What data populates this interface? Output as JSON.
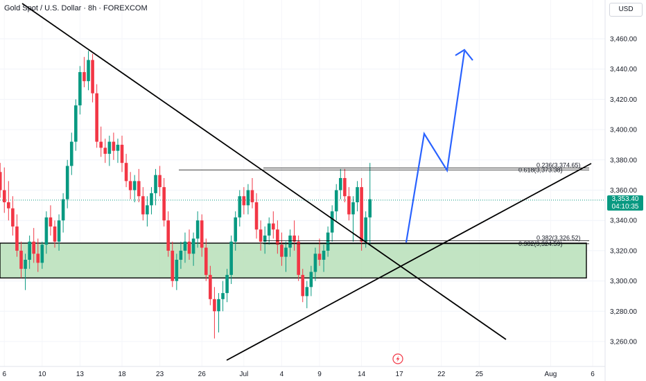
{
  "header": {
    "title": "Gold Spot / U.S. Dollar · 8h · FOREXCOM",
    "currency": "USD"
  },
  "price_tag": {
    "price": "3,353.40",
    "countdown": "04:10:35"
  },
  "colors": {
    "up": "#089981",
    "down": "#f23645",
    "projection": "#2962ff",
    "zone_fill": "#b7dfb9"
  },
  "icons": [
    "lightning-icon"
  ],
  "chart_data": {
    "type": "candlestick",
    "title": "Gold Spot / U.S. Dollar · 8h · FOREXCOM",
    "ylim": [
      3248,
      3475
    ],
    "y_ticks": [
      {
        "value": 3260,
        "label": "3,260.00"
      },
      {
        "value": 3280,
        "label": "3,280.00"
      },
      {
        "value": 3300,
        "label": "3,300.00"
      },
      {
        "value": 3320,
        "label": "3,320.00"
      },
      {
        "value": 3340,
        "label": "3,340.00"
      },
      {
        "value": 3360,
        "label": "3,360.00"
      },
      {
        "value": 3380,
        "label": "3,380.00"
      },
      {
        "value": 3400,
        "label": "3,400.00"
      },
      {
        "value": 3420,
        "label": "3,420.00"
      },
      {
        "value": 3440,
        "label": "3,440.00"
      },
      {
        "value": 3460,
        "label": "3,460.00"
      }
    ],
    "x_ticks": [
      {
        "i": 1,
        "label": "6"
      },
      {
        "i": 10,
        "label": "10"
      },
      {
        "i": 19,
        "label": "13"
      },
      {
        "i": 29,
        "label": "18"
      },
      {
        "i": 38,
        "label": "23"
      },
      {
        "i": 48,
        "label": "26"
      },
      {
        "i": 58,
        "label": "Jul"
      },
      {
        "i": 67,
        "label": "4"
      },
      {
        "i": 76,
        "label": "9"
      },
      {
        "i": 86,
        "label": "14"
      },
      {
        "i": 95,
        "label": "17"
      },
      {
        "i": 105,
        "label": "22"
      },
      {
        "i": 114,
        "label": "25"
      },
      {
        "i": 131,
        "label": "Aug"
      },
      {
        "i": 141,
        "label": "6"
      }
    ],
    "candles": [
      [
        3372,
        3378,
        3355,
        3360
      ],
      [
        3360,
        3375,
        3345,
        3352
      ],
      [
        3352,
        3366,
        3340,
        3348
      ],
      [
        3348,
        3356,
        3330,
        3336
      ],
      [
        3336,
        3344,
        3316,
        3320
      ],
      [
        3320,
        3326,
        3302,
        3308
      ],
      [
        3308,
        3318,
        3294,
        3314
      ],
      [
        3314,
        3330,
        3308,
        3326
      ],
      [
        3326,
        3335,
        3312,
        3318
      ],
      [
        3318,
        3328,
        3306,
        3312
      ],
      [
        3312,
        3326,
        3308,
        3324
      ],
      [
        3324,
        3346,
        3318,
        3342
      ],
      [
        3342,
        3350,
        3330,
        3336
      ],
      [
        3336,
        3340,
        3322,
        3326
      ],
      [
        3326,
        3344,
        3320,
        3340
      ],
      [
        3340,
        3358,
        3332,
        3354
      ],
      [
        3354,
        3380,
        3348,
        3376
      ],
      [
        3376,
        3398,
        3370,
        3392
      ],
      [
        3392,
        3420,
        3386,
        3416
      ],
      [
        3416,
        3442,
        3410,
        3438
      ],
      [
        3438,
        3448,
        3428,
        3432
      ],
      [
        3432,
        3452,
        3426,
        3446
      ],
      [
        3446,
        3450,
        3418,
        3424
      ],
      [
        3424,
        3430,
        3388,
        3392
      ],
      [
        3392,
        3402,
        3382,
        3388
      ],
      [
        3388,
        3394,
        3378,
        3384
      ],
      [
        3384,
        3396,
        3376,
        3392
      ],
      [
        3392,
        3398,
        3380,
        3386
      ],
      [
        3386,
        3394,
        3378,
        3390
      ],
      [
        3390,
        3396,
        3372,
        3378
      ],
      [
        3378,
        3384,
        3362,
        3366
      ],
      [
        3366,
        3372,
        3354,
        3360
      ],
      [
        3360,
        3370,
        3352,
        3366
      ],
      [
        3366,
        3374,
        3352,
        3356
      ],
      [
        3356,
        3362,
        3340,
        3344
      ],
      [
        3344,
        3356,
        3336,
        3350
      ],
      [
        3350,
        3362,
        3344,
        3358
      ],
      [
        3358,
        3374,
        3350,
        3370
      ],
      [
        3370,
        3376,
        3356,
        3362
      ],
      [
        3362,
        3368,
        3336,
        3340
      ],
      [
        3340,
        3346,
        3316,
        3320
      ],
      [
        3320,
        3326,
        3296,
        3300
      ],
      [
        3300,
        3318,
        3294,
        3314
      ],
      [
        3314,
        3326,
        3308,
        3320
      ],
      [
        3320,
        3332,
        3312,
        3326
      ],
      [
        3326,
        3334,
        3314,
        3318
      ],
      [
        3318,
        3332,
        3310,
        3328
      ],
      [
        3328,
        3346,
        3322,
        3340
      ],
      [
        3340,
        3344,
        3316,
        3322
      ],
      [
        3322,
        3328,
        3300,
        3304
      ],
      [
        3304,
        3310,
        3284,
        3288
      ],
      [
        3288,
        3296,
        3262,
        3280
      ],
      [
        3280,
        3292,
        3266,
        3288
      ],
      [
        3288,
        3300,
        3280,
        3292
      ],
      [
        3292,
        3308,
        3286,
        3304
      ],
      [
        3304,
        3330,
        3298,
        3326
      ],
      [
        3326,
        3346,
        3320,
        3342
      ],
      [
        3342,
        3360,
        3336,
        3356
      ],
      [
        3356,
        3362,
        3344,
        3350
      ],
      [
        3350,
        3364,
        3344,
        3360
      ],
      [
        3360,
        3368,
        3348,
        3352
      ],
      [
        3352,
        3358,
        3328,
        3334
      ],
      [
        3334,
        3340,
        3320,
        3326
      ],
      [
        3326,
        3336,
        3318,
        3330
      ],
      [
        3330,
        3342,
        3324,
        3338
      ],
      [
        3338,
        3346,
        3328,
        3334
      ],
      [
        3334,
        3340,
        3318,
        3324
      ],
      [
        3324,
        3332,
        3310,
        3316
      ],
      [
        3316,
        3326,
        3306,
        3322
      ],
      [
        3322,
        3334,
        3316,
        3330
      ],
      [
        3330,
        3340,
        3320,
        3326
      ],
      [
        3326,
        3330,
        3300,
        3304
      ],
      [
        3304,
        3308,
        3286,
        3290
      ],
      [
        3290,
        3300,
        3282,
        3296
      ],
      [
        3296,
        3310,
        3290,
        3306
      ],
      [
        3306,
        3322,
        3300,
        3318
      ],
      [
        3318,
        3328,
        3310,
        3314
      ],
      [
        3314,
        3324,
        3306,
        3320
      ],
      [
        3320,
        3336,
        3316,
        3332
      ],
      [
        3332,
        3350,
        3326,
        3346
      ],
      [
        3346,
        3364,
        3340,
        3360
      ],
      [
        3360,
        3374,
        3354,
        3368
      ],
      [
        3368,
        3374,
        3352,
        3356
      ],
      [
        3356,
        3362,
        3340,
        3344
      ],
      [
        3344,
        3356,
        3326,
        3352
      ],
      [
        3352,
        3366,
        3346,
        3362
      ],
      [
        3362,
        3368,
        3320,
        3326
      ],
      [
        3326,
        3346,
        3322,
        3342
      ],
      [
        3342,
        3378,
        3324,
        3354
      ]
    ],
    "annotations": {
      "fib_levels": [
        {
          "label": "0.236(3,374.65)",
          "value": 3374.65
        },
        {
          "label": "0.618(3,373.38)",
          "value": 3373.38
        },
        {
          "label": "0.382(3,326.52)",
          "value": 3326.52
        },
        {
          "label": "0.382(3,324.59)",
          "value": 3324.59
        }
      ],
      "zone": {
        "top": 3325,
        "bottom": 3302
      },
      "current_price": 3353.4
    }
  }
}
